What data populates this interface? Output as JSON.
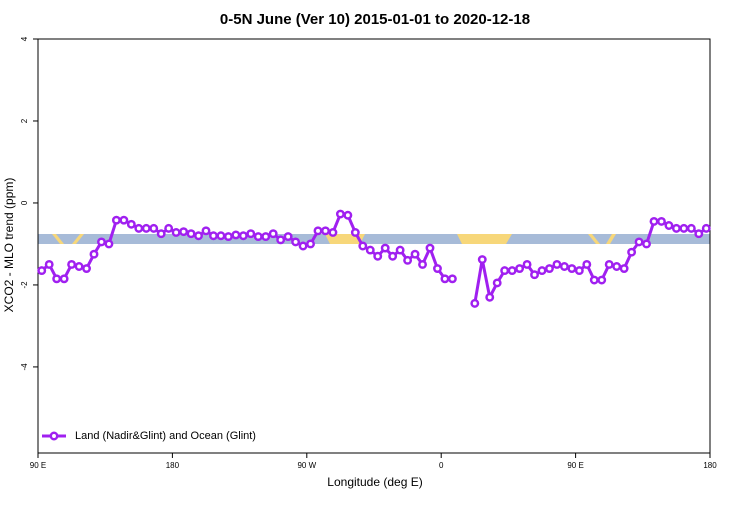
{
  "chart_data": {
    "type": "line",
    "title": "0-5N June (Ver 10)   2015-01-01 to 2020-12-18",
    "x_label": "Longitude (deg E)",
    "y_label": "XCO2 - MLO trend (ppm)",
    "xlim": [
      90,
      540
    ],
    "ylim": [
      -6.1,
      4
    ],
    "xticks": [
      {
        "value": 90,
        "label": "90 E"
      },
      {
        "value": 180,
        "label": "180"
      },
      {
        "value": 270,
        "label": "90 W"
      },
      {
        "value": 360,
        "label": "0"
      },
      {
        "value": 450,
        "label": "90 E"
      },
      {
        "value": 540,
        "label": "180"
      }
    ],
    "yticks": [
      4,
      2,
      0,
      -2,
      -4
    ],
    "legend": "bottom-left",
    "x": [
      92.5,
      97.5,
      102.5,
      107.5,
      112.5,
      117.5,
      122.5,
      127.5,
      132.5,
      137.5,
      142.5,
      147.5,
      152.5,
      157.5,
      162.5,
      167.5,
      172.5,
      177.5,
      182.5,
      187.5,
      192.5,
      197.5,
      202.5,
      207.5,
      212.5,
      217.5,
      222.5,
      227.5,
      232.5,
      237.5,
      242.5,
      247.5,
      252.5,
      257.5,
      262.5,
      267.5,
      272.5,
      277.5,
      282.5,
      287.5,
      292.5,
      297.5,
      302.5,
      307.5,
      312.5,
      317.5,
      322.5,
      327.5,
      332.5,
      337.5,
      342.5,
      347.5,
      352.5,
      357.5,
      362.5,
      367.5,
      372.5,
      377.5,
      382.5,
      387.5,
      392.5,
      397.5,
      402.5,
      407.5,
      412.5,
      417.5,
      422.5,
      427.5,
      432.5,
      437.5,
      442.5,
      447.5,
      452.5,
      457.5,
      462.5,
      467.5,
      472.5,
      477.5,
      482.5,
      487.5,
      492.5,
      497.5,
      502.5,
      507.5,
      512.5,
      517.5,
      522.5,
      527.5,
      532.5,
      537.5
    ],
    "series": [
      {
        "name": "Land (Nadir&Glint) and Ocean (Glint)",
        "color": "#a020f0",
        "values": [
          -1.65,
          -1.5,
          -1.85,
          -1.85,
          -1.5,
          -1.55,
          -1.6,
          -1.25,
          -0.95,
          -1.0,
          -0.42,
          -0.42,
          -0.52,
          -0.62,
          -0.62,
          -0.62,
          -0.75,
          -0.62,
          -0.72,
          -0.7,
          -0.75,
          -0.8,
          -0.68,
          -0.8,
          -0.8,
          -0.82,
          -0.78,
          -0.8,
          -0.75,
          -0.82,
          -0.82,
          -0.75,
          -0.9,
          -0.82,
          -0.95,
          -1.05,
          -1.0,
          -0.68,
          -0.68,
          -0.72,
          -0.27,
          -0.3,
          -0.72,
          -1.05,
          -1.15,
          -1.3,
          -1.1,
          -1.3,
          -1.15,
          -1.4,
          -1.25,
          -1.5,
          -1.1,
          -1.6,
          -1.85,
          -1.85,
          null,
          null,
          -2.45,
          -1.38,
          -2.3,
          -1.95,
          -1.65,
          -1.65,
          -1.6,
          -1.5,
          -1.75,
          -1.65,
          -1.6,
          -1.5,
          -1.55,
          -1.6,
          -1.65,
          -1.5,
          -1.88,
          -1.88,
          -1.5,
          -1.55,
          -1.6,
          -1.2,
          -0.95,
          -1.0,
          -0.45,
          -0.45,
          -0.55,
          -0.62,
          -0.62,
          -0.62,
          -0.75,
          -0.62
        ]
      }
    ]
  }
}
